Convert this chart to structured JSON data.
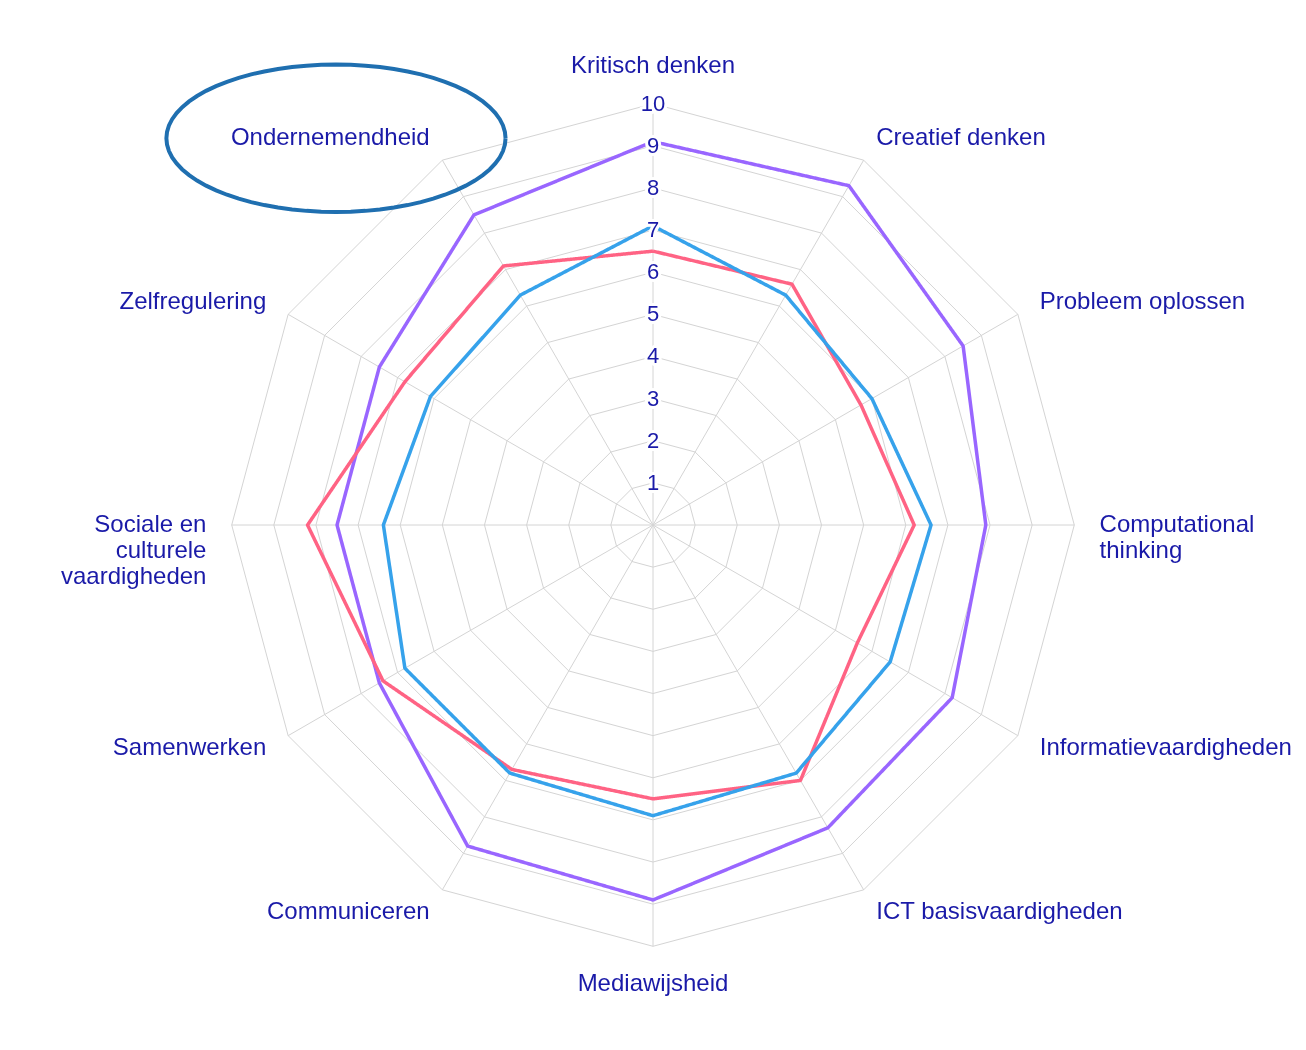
{
  "chart_data": {
    "type": "radar",
    "categories": [
      "Kritisch denken",
      "Creatief denken",
      "Probleem oplossen",
      "Computational thinking",
      "Informatievaardigheden",
      "ICT basisvaardigheden",
      "Mediawijsheid",
      "Communiceren",
      "Samenwerken",
      "Sociale en culturele vaardigheden",
      "Zelfregulering",
      "Ondernemendheid"
    ],
    "series": [
      {
        "color": "#9966ff",
        "values": [
          9.1,
          9.3,
          8.5,
          7.9,
          8.2,
          8.3,
          8.9,
          8.8,
          7.5,
          7.5,
          7.5,
          8.5
        ]
      },
      {
        "color": "#ff6384",
        "values": [
          6.5,
          6.6,
          5.7,
          6.2,
          5.6,
          7.0,
          6.5,
          6.7,
          7.4,
          8.2,
          6.8,
          7.1
        ]
      },
      {
        "color": "#36a2eb",
        "values": [
          7.1,
          6.3,
          6.0,
          6.6,
          6.5,
          6.8,
          6.9,
          6.8,
          6.8,
          6.4,
          6.1,
          6.3
        ]
      }
    ],
    "ylim": [
      0,
      10
    ],
    "yticks": [
      1,
      2,
      3,
      4,
      5,
      6,
      7,
      8,
      9,
      10
    ],
    "grid": true,
    "line_style": "solid"
  }
}
